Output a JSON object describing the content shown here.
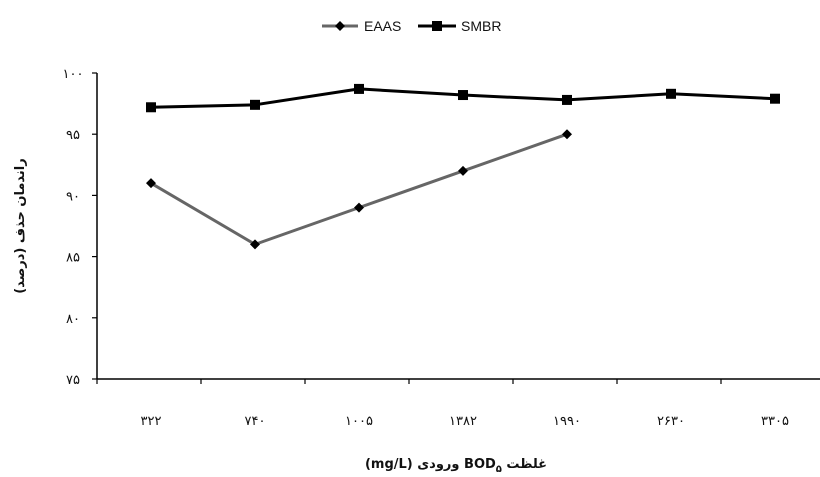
{
  "chart_data": {
    "type": "line",
    "categories": [
      "۳۲۲",
      "۷۴۰",
      "۱۰۰۵",
      "۱۳۸۲",
      "۱۹۹۰",
      "۲۶۳۰",
      "۳۳۰۵"
    ],
    "series": [
      {
        "name": "EAAS",
        "color": "#666666",
        "marker": "diamond",
        "values": [
          91,
          86,
          89,
          92,
          95,
          null,
          null
        ]
      },
      {
        "name": "SMBR",
        "color": "#000000",
        "marker": "square",
        "values": [
          97.2,
          97.4,
          98.7,
          98.2,
          97.8,
          98.3,
          97.9
        ]
      }
    ],
    "ylim": [
      75,
      100
    ],
    "ytick_values": [
      75,
      80,
      85,
      90,
      95,
      100
    ],
    "ytick_labels": [
      "۷۵",
      "۸۰",
      "۸۵",
      "۹۰",
      "۹۵",
      "۱۰۰"
    ],
    "ylabel": "راندمان حذف (درصد)",
    "xlabel_prefix": "غلظت ",
    "xlabel_bod": "BOD",
    "xlabel_subscript": "۵",
    "xlabel_suffix": " ورودی (mg/L)",
    "grid": false,
    "legend_position": "top-center"
  }
}
